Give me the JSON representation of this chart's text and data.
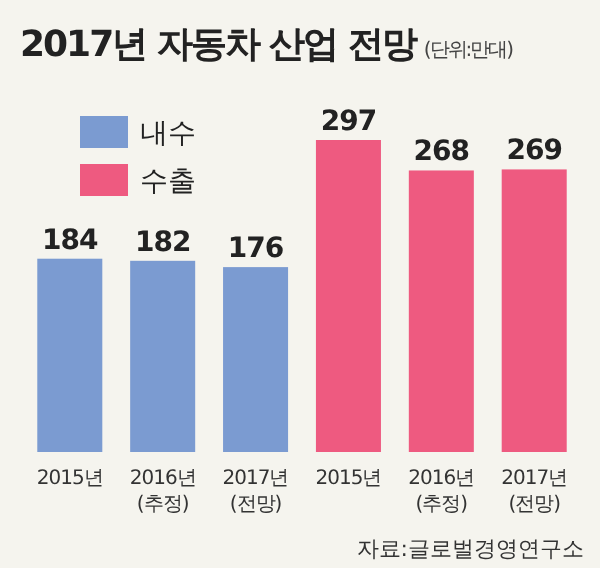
{
  "chart_data": {
    "type": "bar",
    "title": "2017년 자동차 산업 전망",
    "subtitle": "(단위:만대)",
    "categories": [
      "2015년",
      "2016년\n(추정)",
      "2017년\n(전망)",
      "2015년",
      "2016년\n(추정)",
      "2017년\n(전망)"
    ],
    "series": [
      {
        "name": "내수",
        "color": "#7b9bd1",
        "values": [
          184,
          182,
          176,
          null,
          null,
          null
        ]
      },
      {
        "name": "수출",
        "color": "#ee5a80",
        "values": [
          null,
          null,
          null,
          297,
          268,
          269
        ]
      }
    ],
    "stacked": true,
    "data_labels": true,
    "legend": "top left",
    "annotations": [
      "자료:글로벌경영연구소"
    ]
  }
}
